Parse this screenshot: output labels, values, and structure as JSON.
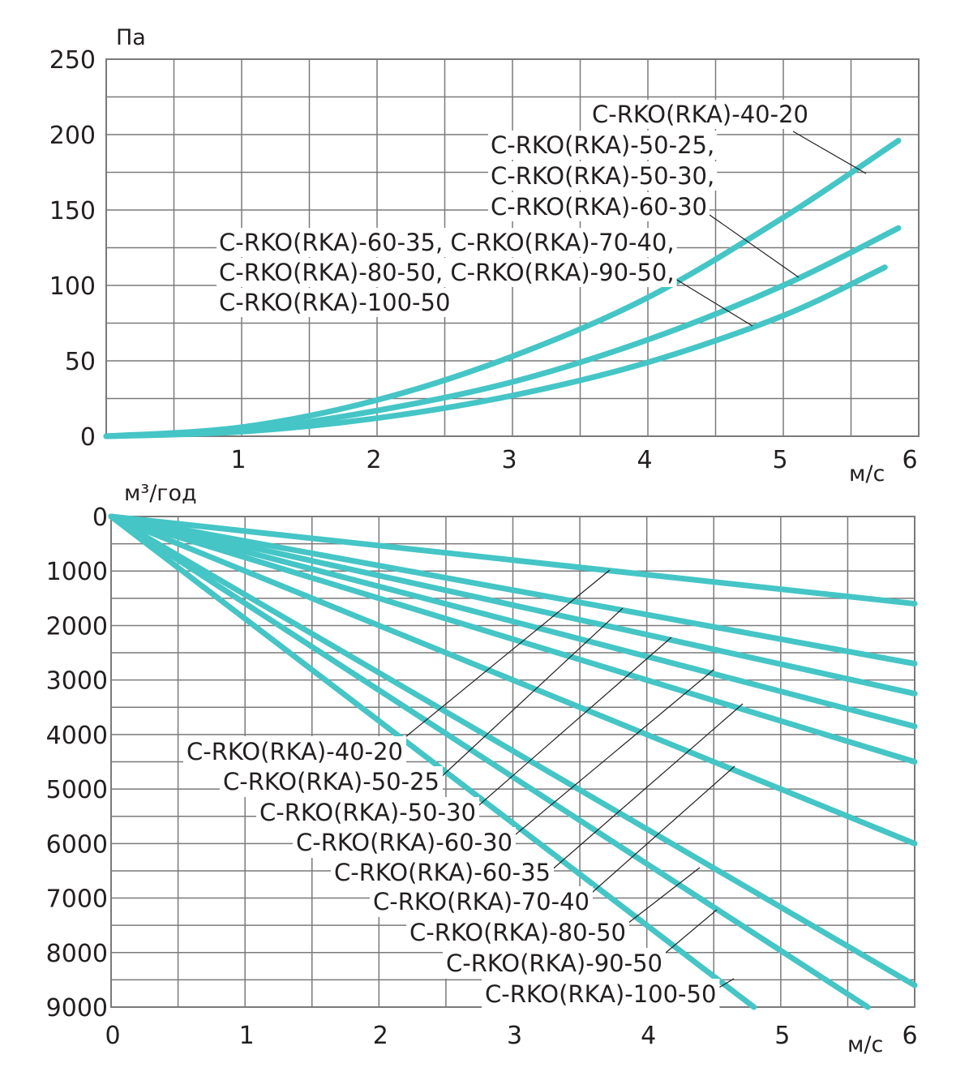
{
  "chart_data": [
    {
      "type": "line",
      "xlabel": "м/с",
      "ylabel": "Па",
      "xlim": [
        0,
        6
      ],
      "ylim": [
        0,
        250
      ],
      "x_ticks": [
        "1",
        "2",
        "3",
        "4",
        "5",
        "6"
      ],
      "y_ticks": [
        "0",
        "50",
        "100",
        "150",
        "200",
        "250"
      ],
      "grid": true,
      "series": [
        {
          "name": "C-RKO(RKA)-40-20",
          "x": [
            0,
            1,
            2,
            3,
            4,
            5,
            5.85
          ],
          "y": [
            0,
            6,
            24,
            53,
            92,
            145,
            196
          ]
        },
        {
          "name": "C-RKO(RKA)-50-25, C-RKO(RKA)-50-30, C-RKO(RKA)-60-30",
          "x": [
            0,
            1,
            2,
            3,
            4,
            5,
            5.85
          ],
          "y": [
            0,
            4,
            17,
            36,
            64,
            100,
            138
          ]
        },
        {
          "name": "C-RKO(RKA)-60-35, C-RKO(RKA)-70-40, C-RKO(RKA)-80-50, C-RKO(RKA)-90-50, C-RKO(RKA)-100-50",
          "x": [
            0,
            1,
            2,
            3,
            4,
            5,
            5.75
          ],
          "y": [
            0,
            3,
            12,
            27,
            49,
            80,
            112
          ]
        }
      ],
      "labels": [
        "C-RKO(RKA)-40-20",
        "C-RKO(RKA)-50-25,",
        "C-RKO(RKA)-50-30,",
        "C-RKO(RKA)-60-30",
        "C-RKO(RKA)-60-35, C-RKO(RKA)-70-40,",
        "C-RKO(RKA)-80-50, C-RKO(RKA)-90-50,",
        "C-RKO(RKA)-100-50"
      ]
    },
    {
      "type": "line",
      "xlabel": "м/с",
      "ylabel": "м³/год",
      "xlim": [
        0,
        6
      ],
      "ylim": [
        0,
        9000
      ],
      "y_inverted": true,
      "x_ticks": [
        "0",
        "1",
        "2",
        "3",
        "4",
        "5",
        "6"
      ],
      "y_ticks": [
        "0",
        "1000",
        "2000",
        "3000",
        "4000",
        "5000",
        "6000",
        "7000",
        "8000",
        "9000"
      ],
      "grid": true,
      "series": [
        {
          "name": "C-RKO(RKA)-40-20",
          "x": [
            0,
            6
          ],
          "y": [
            0,
            1600
          ]
        },
        {
          "name": "C-RKO(RKA)-50-25",
          "x": [
            0,
            6
          ],
          "y": [
            0,
            2700
          ]
        },
        {
          "name": "C-RKO(RKA)-50-30",
          "x": [
            0,
            6
          ],
          "y": [
            0,
            3250
          ]
        },
        {
          "name": "C-RKO(RKA)-60-30",
          "x": [
            0,
            6
          ],
          "y": [
            0,
            3850
          ]
        },
        {
          "name": "C-RKO(RKA)-60-35",
          "x": [
            0,
            6
          ],
          "y": [
            0,
            4500
          ]
        },
        {
          "name": "C-RKO(RKA)-70-40",
          "x": [
            0,
            6
          ],
          "y": [
            0,
            6000
          ]
        },
        {
          "name": "C-RKO(RKA)-80-50",
          "x": [
            0,
            6
          ],
          "y": [
            0,
            8600
          ]
        },
        {
          "name": "C-RKO(RKA)-90-50",
          "x": [
            0,
            5.65
          ],
          "y": [
            0,
            9000
          ]
        },
        {
          "name": "C-RKO(RKA)-100-50",
          "x": [
            0,
            4.8
          ],
          "y": [
            0,
            9000
          ]
        }
      ],
      "labels": [
        "C-RKO(RKA)-40-20",
        "C-RKO(RKA)-50-25",
        "C-RKO(RKA)-50-30",
        "C-RKO(RKA)-60-30",
        "C-RKO(RKA)-60-35",
        "C-RKO(RKA)-70-40",
        "C-RKO(RKA)-80-50",
        "C-RKO(RKA)-90-50",
        "C-RKO(RKA)-100-50"
      ]
    }
  ]
}
